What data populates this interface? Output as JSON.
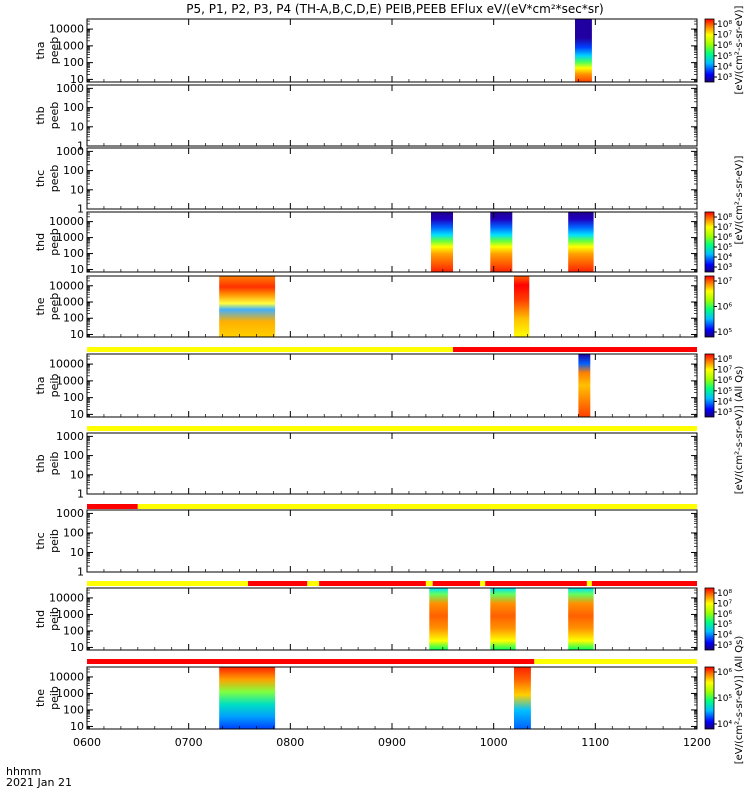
{
  "title": "P5, P1, P2, P3, P4 (TH-A,B,C,D,E) PEIB,PEEB EFlux eV/(eV*cm²*sec*sr)",
  "colorbar_units_eflux": "[eV/(cm²-s-sr-eV)] (All Qs)",
  "colorbar_units_short": "[eV/(cm²-s-sr-eV)]",
  "time_label": "hhmm",
  "date_label": "2021 Jan 21",
  "colors": {
    "flag_yellow": "#ffff00",
    "flag_red": "#ff0000",
    "background": "#ffffff"
  },
  "chart_data": {
    "type": "heatmap",
    "x_range": [
      "0600",
      "1200"
    ],
    "x_ticks": [
      "0600",
      "0700",
      "0800",
      "0900",
      "1000",
      "1100",
      "1200"
    ],
    "y_scale": "log",
    "panels": [
      {
        "label_line1": "tha",
        "label_line2": "peeb",
        "y_ticks": [
          "10",
          "100",
          "1000",
          "10000"
        ],
        "ylim": [
          7,
          40000
        ],
        "has_colorbar": true,
        "cbar_ticks": [
          "10⁸",
          "10⁷",
          "10⁶",
          "10⁵",
          "10⁴",
          "10³"
        ],
        "blocks": [
          {
            "t0": "10:48",
            "t1": "10:58",
            "style": "tha_peeb"
          }
        ]
      },
      {
        "label_line1": "thb",
        "label_line2": "peeb",
        "y_ticks": [
          "1",
          "10",
          "100",
          "1000"
        ],
        "ylim": [
          1,
          1500
        ],
        "has_colorbar": false,
        "blocks": []
      },
      {
        "label_line1": "thc",
        "label_line2": "peeb",
        "y_ticks": [
          "1",
          "10",
          "100",
          "1000"
        ],
        "ylim": [
          1,
          1500
        ],
        "has_colorbar": false,
        "blocks": []
      },
      {
        "label_line1": "thd",
        "label_line2": "peeb",
        "y_ticks": [
          "10",
          "100",
          "1000",
          "10000"
        ],
        "ylim": [
          7,
          40000
        ],
        "has_colorbar": true,
        "cbar_ticks": [
          "10⁸",
          "10⁷",
          "10⁶",
          "10⁵",
          "10⁴",
          "10³"
        ],
        "blocks": [
          {
            "t0": "09:23",
            "t1": "09:36",
            "style": "thd_peeb"
          },
          {
            "t0": "09:58",
            "t1": "10:11",
            "style": "thd_peeb"
          },
          {
            "t0": "10:44",
            "t1": "10:59",
            "style": "thd_peeb"
          }
        ]
      },
      {
        "label_line1": "the",
        "label_line2": "peeb",
        "y_ticks": [
          "10",
          "100",
          "1000",
          "10000"
        ],
        "ylim": [
          7,
          40000
        ],
        "has_colorbar": true,
        "cbar_ticks": [
          "10⁷",
          "10⁶",
          "10⁵"
        ],
        "blocks": [
          {
            "t0": "07:18",
            "t1": "07:51",
            "style": "the_peeb_a"
          },
          {
            "t0": "10:12",
            "t1": "10:21",
            "style": "the_peeb_b"
          }
        ]
      },
      {
        "label_line1": "tha",
        "label_line2": "peib",
        "y_ticks": [
          "10",
          "100",
          "1000",
          "10000"
        ],
        "ylim": [
          7,
          40000
        ],
        "has_colorbar": true,
        "cbar_ticks": [
          "10⁸",
          "10⁷",
          "10⁶",
          "10⁵",
          "10⁴",
          "10³"
        ],
        "blocks": [
          {
            "t0": "10:50",
            "t1": "10:57",
            "style": "tha_peib"
          }
        ]
      },
      {
        "label_line1": "thb",
        "label_line2": "peib",
        "y_ticks": [
          "1",
          "10",
          "100",
          "1000"
        ],
        "ylim": [
          1,
          1500
        ],
        "has_colorbar": false,
        "blocks": []
      },
      {
        "label_line1": "thc",
        "label_line2": "peib",
        "y_ticks": [
          "1",
          "10",
          "100",
          "1000"
        ],
        "ylim": [
          1,
          1500
        ],
        "has_colorbar": false,
        "blocks": []
      },
      {
        "label_line1": "thd",
        "label_line2": "peib",
        "y_ticks": [
          "10",
          "100",
          "1000",
          "10000"
        ],
        "ylim": [
          7,
          40000
        ],
        "has_colorbar": true,
        "cbar_ticks": [
          "10⁸",
          "10⁷",
          "10⁶",
          "10⁵",
          "10⁴",
          "10³"
        ],
        "blocks": [
          {
            "t0": "09:22",
            "t1": "09:33",
            "style": "thd_peib"
          },
          {
            "t0": "09:58",
            "t1": "10:13",
            "style": "thd_peib"
          },
          {
            "t0": "10:44",
            "t1": "10:59",
            "style": "thd_peib"
          }
        ]
      },
      {
        "label_line1": "the",
        "label_line2": "peib",
        "y_ticks": [
          "10",
          "100",
          "1000",
          "10000"
        ],
        "ylim": [
          7,
          40000
        ],
        "has_colorbar": true,
        "cbar_ticks": [
          "10⁶",
          "10⁵",
          "10⁴"
        ],
        "blocks": [
          {
            "t0": "07:18",
            "t1": "07:51",
            "style": "the_peib_a"
          },
          {
            "t0": "10:12",
            "t1": "10:22",
            "style": "the_peib_b"
          }
        ]
      }
    ],
    "flag_bars": [
      {
        "after_panel": 4,
        "segments": [
          {
            "t0": "06:00",
            "t1": "09:36",
            "color": "yellow"
          },
          {
            "t0": "09:36",
            "t1": "12:00",
            "color": "red"
          }
        ]
      },
      {
        "after_panel": 5,
        "segments": [
          {
            "t0": "06:00",
            "t1": "12:00",
            "color": "yellow"
          }
        ]
      },
      {
        "after_panel": 6,
        "segments": [
          {
            "t0": "06:00",
            "t1": "06:30",
            "color": "red"
          },
          {
            "t0": "06:30",
            "t1": "12:00",
            "color": "yellow"
          }
        ]
      },
      {
        "after_panel": 7,
        "segments": [
          {
            "t0": "06:00",
            "t1": "07:35",
            "color": "yellow"
          },
          {
            "t0": "07:35",
            "t1": "08:10",
            "color": "red"
          },
          {
            "t0": "08:10",
            "t1": "08:17",
            "color": "yellow"
          },
          {
            "t0": "08:17",
            "t1": "09:20",
            "color": "red"
          },
          {
            "t0": "09:20",
            "t1": "09:24",
            "color": "yellow"
          },
          {
            "t0": "09:24",
            "t1": "09:52",
            "color": "red"
          },
          {
            "t0": "09:52",
            "t1": "09:55",
            "color": "yellow"
          },
          {
            "t0": "09:55",
            "t1": "10:55",
            "color": "red"
          },
          {
            "t0": "10:55",
            "t1": "10:58",
            "color": "yellow"
          },
          {
            "t0": "10:58",
            "t1": "12:00",
            "color": "red"
          }
        ]
      },
      {
        "after_panel": 8,
        "segments": [
          {
            "t0": "06:00",
            "t1": "10:24",
            "color": "red"
          },
          {
            "t0": "10:24",
            "t1": "12:00",
            "color": "yellow"
          }
        ]
      }
    ]
  }
}
